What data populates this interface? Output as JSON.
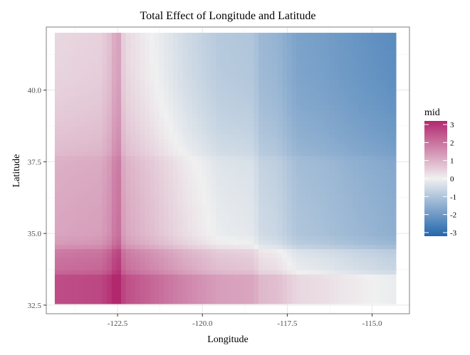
{
  "chart_data": {
    "type": "heatmap",
    "title": "Total Effect of Longitude and Latitude",
    "xlabel": "Longitude",
    "ylabel": "Latitude",
    "xlim": [
      -124.6,
      -113.9
    ],
    "ylim": [
      32.2,
      42.2
    ],
    "data_extent": {
      "x": [
        -124.35,
        -114.3
      ],
      "y": [
        32.55,
        42.0
      ]
    },
    "x_ticks": [
      {
        "value": -122.5,
        "label": "-122.5"
      },
      {
        "value": -120.0,
        "label": "-120.0"
      },
      {
        "value": -117.5,
        "label": "-117.5"
      },
      {
        "value": -115.0,
        "label": "-115.0"
      }
    ],
    "y_ticks": [
      {
        "value": 32.5,
        "label": "32.5"
      },
      {
        "value": 35.0,
        "label": "35.0"
      },
      {
        "value": 37.5,
        "label": "37.5"
      },
      {
        "value": 40.0,
        "label": "40.0"
      }
    ],
    "grid": true,
    "colorscale": {
      "name": "mid",
      "low_color": "#2166ac",
      "mid_color": "#f0f0f0",
      "high_color": "#b2286e",
      "range": [
        -3.2,
        3.2
      ],
      "ticks": [
        {
          "value": 3,
          "label": "3"
        },
        {
          "value": 2,
          "label": "2"
        },
        {
          "value": 1,
          "label": "1"
        },
        {
          "value": 0,
          "label": "0"
        },
        {
          "value": -1,
          "label": "-1"
        },
        {
          "value": -2,
          "label": "-2"
        },
        {
          "value": -3,
          "label": "-3"
        }
      ]
    },
    "lon_effect": {
      "x": [
        -124.3,
        -123.0,
        -122.7,
        -122.5,
        -122.3,
        -121.5,
        -120.5,
        -119.5,
        -118.5,
        -118.3,
        -117.8,
        -117.2,
        -116.5,
        -115.5,
        -114.4
      ],
      "v": [
        1.1,
        1.2,
        1.5,
        2.1,
        1.1,
        0.7,
        0.2,
        -0.2,
        -0.3,
        -0.6,
        -0.7,
        -1.1,
        -1.2,
        -1.4,
        -1.6
      ]
    },
    "lat_effect": {
      "y": [
        32.6,
        33.5,
        33.7,
        34.1,
        34.4,
        34.6,
        35.0,
        35.8,
        36.5,
        37.2,
        37.6,
        37.8,
        38.5,
        39.5,
        40.5,
        41.9
      ],
      "v": [
        1.5,
        1.5,
        1.0,
        0.9,
        0.75,
        0.3,
        0.1,
        0.05,
        0.0,
        -0.05,
        -0.1,
        -0.25,
        -0.4,
        -0.55,
        -0.65,
        -0.7
      ]
    }
  }
}
